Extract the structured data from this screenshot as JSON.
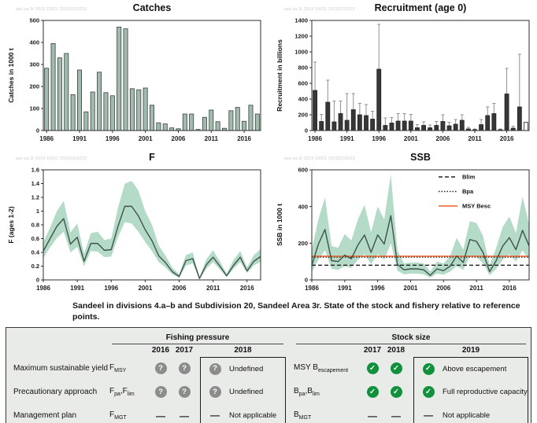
{
  "watermark": "san.sa.3r 2019 10021 20192519233",
  "caption": "Sandeel in divisions 4.a–b and Subdivision 20, Sandeel Area 3r. State of the stock and fishery relative to reference points.",
  "colors": {
    "bar_fill": "#a0bcae",
    "bar_stroke": "#3e3e3e",
    "recruit_bar": "#373737",
    "whisker": "#909090",
    "band": "#b4dac8",
    "line": "#3f5349",
    "msy_orange": "#e8612c",
    "ref_black": "#222222",
    "ok_green": "#12913c",
    "undef_gray": "#8c8c8c",
    "table_bg": "#e9ebe8"
  },
  "chart_data": [
    {
      "id": "catches",
      "type": "bar",
      "title": "Catches",
      "ylabel": "Catches in 1000 t",
      "start": 1986,
      "ylim": [
        0,
        500
      ],
      "yticks": [
        0,
        100,
        200,
        300,
        400,
        500
      ],
      "xticks": [
        1986,
        1991,
        1996,
        2001,
        2006,
        2011,
        2016
      ],
      "values": [
        283,
        395,
        330,
        350,
        163,
        275,
        85,
        175,
        265,
        172,
        158,
        470,
        462,
        190,
        185,
        193,
        115,
        35,
        30,
        12,
        8,
        75,
        75,
        5,
        60,
        93,
        40,
        10,
        90,
        105,
        42,
        115,
        75
      ],
      "bar_fill": "#a0bcae",
      "bar_stroke": "#3e3e3e"
    },
    {
      "id": "recruitment",
      "type": "bar",
      "title": "Recruitment (age 0)",
      "ylabel": "Recruitment in billions",
      "start": 1986,
      "ylim": [
        0,
        1400
      ],
      "yticks": [
        0,
        200,
        400,
        600,
        800,
        1000,
        1200,
        1400
      ],
      "xticks": [
        1986,
        1991,
        1996,
        2001,
        2006,
        2011,
        2016
      ],
      "values": [
        510,
        115,
        360,
        110,
        215,
        130,
        265,
        200,
        190,
        145,
        780,
        65,
        95,
        120,
        120,
        120,
        35,
        65,
        35,
        65,
        115,
        60,
        80,
        130,
        20,
        10,
        75,
        190,
        215,
        10,
        465,
        30,
        300,
        105
      ],
      "err_hi": [
        870,
        205,
        640,
        375,
        375,
        470,
        470,
        345,
        330,
        245,
        1350,
        160,
        165,
        215,
        215,
        205,
        75,
        110,
        70,
        115,
        200,
        105,
        140,
        200,
        40,
        20,
        140,
        300,
        345,
        20,
        790,
        55,
        970,
        null
      ],
      "open_last": true,
      "bar_fill": "#373737",
      "bar_stroke": "#222222",
      "whisker": "#909090"
    },
    {
      "id": "f",
      "type": "line",
      "title": "F",
      "ylabel": "F (ages 1-2)",
      "start": 1986,
      "ylim": [
        0,
        1.6
      ],
      "yticks": [
        0,
        0.2,
        0.4,
        0.6,
        0.8,
        1.0,
        1.2,
        1.4,
        1.6
      ],
      "xticks": [
        1986,
        1991,
        1996,
        2001,
        2006,
        2011,
        2016
      ],
      "values": [
        0.42,
        0.6,
        0.78,
        0.89,
        0.52,
        0.62,
        0.27,
        0.53,
        0.53,
        0.43,
        0.44,
        0.78,
        1.07,
        1.07,
        0.93,
        0.73,
        0.57,
        0.35,
        0.25,
        0.12,
        0.05,
        0.28,
        0.31,
        0.02,
        0.22,
        0.33,
        0.2,
        0.06,
        0.21,
        0.33,
        0.13,
        0.27,
        0.34
      ],
      "hi": [
        0.55,
        0.76,
        1.0,
        1.15,
        0.69,
        0.82,
        0.38,
        0.68,
        0.7,
        0.58,
        0.6,
        1.05,
        1.4,
        1.44,
        1.3,
        1.0,
        0.8,
        0.5,
        0.35,
        0.18,
        0.08,
        0.36,
        0.4,
        0.04,
        0.3,
        0.43,
        0.27,
        0.09,
        0.29,
        0.42,
        0.18,
        0.36,
        0.45
      ],
      "lo": [
        0.32,
        0.47,
        0.61,
        0.7,
        0.4,
        0.48,
        0.2,
        0.42,
        0.41,
        0.33,
        0.34,
        0.62,
        0.84,
        0.82,
        0.7,
        0.55,
        0.42,
        0.26,
        0.18,
        0.08,
        0.03,
        0.21,
        0.24,
        0.01,
        0.16,
        0.26,
        0.15,
        0.04,
        0.16,
        0.26,
        0.1,
        0.21,
        0.26
      ],
      "band_fill": "#b4dac8",
      "line_color": "#3f5349"
    },
    {
      "id": "ssb",
      "type": "line",
      "title": "SSB",
      "ylabel": "SSB in 1000 t",
      "start": 1986,
      "ylim": [
        0,
        600
      ],
      "yticks": [
        0,
        200,
        400,
        600
      ],
      "xticks": [
        1986,
        1991,
        1996,
        2001,
        2006,
        2011,
        2016
      ],
      "values": [
        80,
        195,
        275,
        105,
        100,
        135,
        115,
        190,
        245,
        150,
        245,
        195,
        350,
        85,
        55,
        60,
        60,
        55,
        25,
        60,
        50,
        75,
        130,
        95,
        220,
        210,
        150,
        45,
        105,
        185,
        230,
        165,
        270,
        185
      ],
      "hi": [
        165,
        330,
        450,
        185,
        175,
        250,
        215,
        330,
        410,
        260,
        400,
        330,
        575,
        160,
        90,
        95,
        95,
        90,
        45,
        100,
        90,
        130,
        230,
        165,
        320,
        310,
        240,
        80,
        175,
        290,
        345,
        255,
        455,
        300
      ],
      "lo": [
        45,
        110,
        160,
        60,
        55,
        75,
        65,
        110,
        140,
        85,
        140,
        110,
        200,
        50,
        30,
        35,
        35,
        30,
        12,
        35,
        28,
        45,
        75,
        55,
        130,
        125,
        90,
        25,
        60,
        110,
        140,
        100,
        160,
        110
      ],
      "refs": [
        {
          "label": "Blim",
          "style": "dashed",
          "value": 80,
          "color": "#222222"
        },
        {
          "label": "Bpa",
          "style": "dotted",
          "value": 124,
          "color": "#222222"
        },
        {
          "label": "MSY Besc",
          "style": "solid",
          "value": 129,
          "color": "#e8612c"
        }
      ],
      "legend": true,
      "band_fill": "#b4dac8",
      "line_color": "#3f5349"
    }
  ],
  "table": {
    "groups": [
      {
        "title": "Fishing pressure",
        "years": [
          "2016",
          "2017",
          "2018"
        ]
      },
      {
        "title": "Stock size",
        "years": [
          "2017",
          "2018",
          "2019"
        ]
      }
    ],
    "rows": [
      {
        "label": "Maximum sustainable yield",
        "fp_sym": "F_{MSY}",
        "fp1": "q",
        "fp2": "q",
        "fp3": "q",
        "fp_status": "Undefined",
        "ss_sym": "MSY B_{escapement}",
        "ss1": "check",
        "ss2": "check",
        "ss3": "check",
        "ss_status": "Above escapement"
      },
      {
        "label": "Precautionary approach",
        "fp_sym": "F_{pa},F_{lim}",
        "fp1": "q",
        "fp2": "q",
        "fp3": "q",
        "fp_status": "Undefined",
        "ss_sym": "B_{pa},B_{lim}",
        "ss1": "check",
        "ss2": "check",
        "ss3": "check",
        "ss_status": "Full reproductive capacity"
      },
      {
        "label": "Management plan",
        "fp_sym": "F_{MGT}",
        "fp1": "dash",
        "fp2": "dash",
        "fp3": "dash",
        "fp_status": "Not applicable",
        "ss_sym": "B_{MGT}",
        "ss1": "dash",
        "ss2": "dash",
        "ss3": "dash",
        "ss_status": "Not applicable"
      }
    ]
  }
}
